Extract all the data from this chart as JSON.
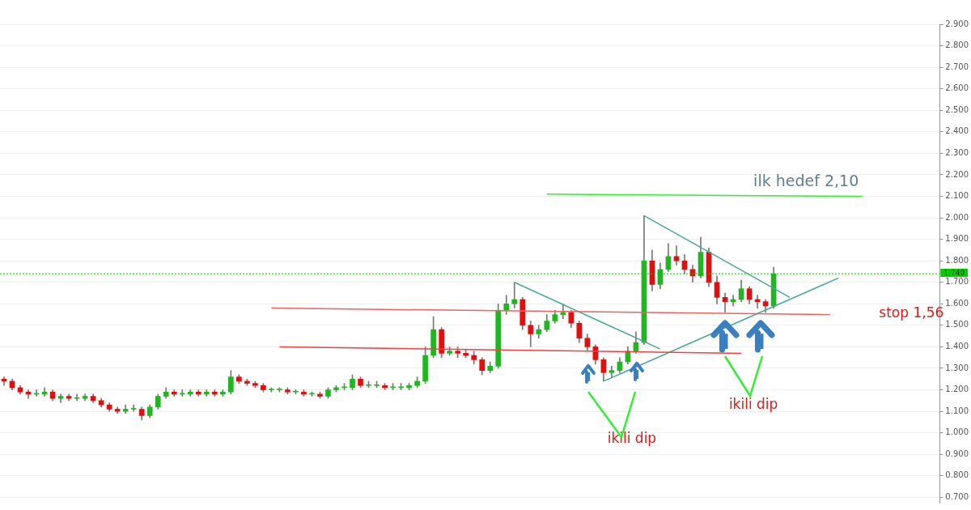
{
  "chart_data": {
    "type": "candlestick",
    "categories": [
      null,
      null,
      null,
      null,
      null,
      null,
      null,
      null,
      null,
      null,
      null,
      null,
      null,
      null,
      null,
      null,
      null,
      null,
      null,
      null,
      null,
      null,
      null,
      null,
      null,
      null,
      null,
      null,
      null,
      null,
      null,
      null,
      null,
      null,
      null,
      null,
      null,
      null,
      null,
      null,
      null,
      null,
      null,
      null,
      null,
      null,
      null,
      null,
      null,
      null,
      null,
      null,
      null,
      null,
      null,
      null,
      null,
      null,
      null,
      null,
      null,
      null,
      null,
      null,
      null,
      null,
      null,
      null,
      null,
      null,
      null,
      null,
      null,
      null,
      null,
      null,
      null,
      null,
      null,
      null,
      null,
      null,
      null,
      null,
      null,
      null,
      null,
      null,
      null,
      null,
      null,
      null,
      null,
      null,
      null,
      null,
      null,
      null,
      null,
      null,
      null,
      null,
      null,
      null,
      null,
      null,
      null,
      null,
      null,
      null,
      null,
      null,
      null,
      null,
      null,
      null
    ],
    "ohlc": [
      [
        1.25,
        1.26,
        1.22,
        1.24
      ],
      [
        1.24,
        1.25,
        1.2,
        1.21
      ],
      [
        1.21,
        1.22,
        1.18,
        1.19
      ],
      [
        1.19,
        1.2,
        1.16,
        1.18
      ],
      [
        1.18,
        1.2,
        1.17,
        1.18
      ],
      [
        1.18,
        1.21,
        1.17,
        1.19
      ],
      [
        1.19,
        1.2,
        1.15,
        1.16
      ],
      [
        1.16,
        1.18,
        1.14,
        1.17
      ],
      [
        1.17,
        1.18,
        1.15,
        1.16
      ],
      [
        1.16,
        1.18,
        1.15,
        1.16
      ],
      [
        1.16,
        1.18,
        1.15,
        1.17
      ],
      [
        1.17,
        1.18,
        1.14,
        1.15
      ],
      [
        1.15,
        1.16,
        1.12,
        1.13
      ],
      [
        1.13,
        1.14,
        1.1,
        1.11
      ],
      [
        1.11,
        1.12,
        1.09,
        1.1
      ],
      [
        1.1,
        1.13,
        1.09,
        1.11
      ],
      [
        1.11,
        1.13,
        1.1,
        1.11
      ],
      [
        1.11,
        1.12,
        1.06,
        1.08
      ],
      [
        1.08,
        1.13,
        1.07,
        1.12
      ],
      [
        1.12,
        1.18,
        1.11,
        1.17
      ],
      [
        1.17,
        1.21,
        1.16,
        1.19
      ],
      [
        1.19,
        1.2,
        1.17,
        1.18
      ],
      [
        1.18,
        1.2,
        1.17,
        1.18
      ],
      [
        1.18,
        1.2,
        1.17,
        1.19
      ],
      [
        1.19,
        1.2,
        1.17,
        1.18
      ],
      [
        1.18,
        1.2,
        1.17,
        1.19
      ],
      [
        1.19,
        1.2,
        1.17,
        1.18
      ],
      [
        1.18,
        1.2,
        1.17,
        1.19
      ],
      [
        1.19,
        1.29,
        1.18,
        1.26
      ],
      [
        1.26,
        1.27,
        1.23,
        1.24
      ],
      [
        1.24,
        1.25,
        1.22,
        1.23
      ],
      [
        1.23,
        1.24,
        1.21,
        1.22
      ],
      [
        1.22,
        1.23,
        1.19,
        1.2
      ],
      [
        1.2,
        1.21,
        1.19,
        1.2
      ],
      [
        1.2,
        1.21,
        1.19,
        1.2
      ],
      [
        1.2,
        1.21,
        1.18,
        1.19
      ],
      [
        1.19,
        1.2,
        1.18,
        1.19
      ],
      [
        1.19,
        1.2,
        1.17,
        1.18
      ],
      [
        1.18,
        1.19,
        1.17,
        1.18
      ],
      [
        1.18,
        1.19,
        1.16,
        1.17
      ],
      [
        1.17,
        1.21,
        1.16,
        1.2
      ],
      [
        1.2,
        1.22,
        1.19,
        1.21
      ],
      [
        1.21,
        1.23,
        1.2,
        1.21
      ],
      [
        1.21,
        1.27,
        1.2,
        1.25
      ],
      [
        1.25,
        1.26,
        1.21,
        1.22
      ],
      [
        1.22,
        1.24,
        1.21,
        1.22
      ],
      [
        1.22,
        1.24,
        1.21,
        1.22
      ],
      [
        1.22,
        1.23,
        1.2,
        1.21
      ],
      [
        1.21,
        1.23,
        1.2,
        1.21
      ],
      [
        1.21,
        1.23,
        1.2,
        1.21
      ],
      [
        1.21,
        1.23,
        1.2,
        1.22
      ],
      [
        1.22,
        1.26,
        1.21,
        1.24
      ],
      [
        1.24,
        1.4,
        1.23,
        1.36
      ],
      [
        1.36,
        1.54,
        1.35,
        1.48
      ],
      [
        1.48,
        1.49,
        1.35,
        1.37
      ],
      [
        1.37,
        1.4,
        1.36,
        1.38
      ],
      [
        1.38,
        1.4,
        1.35,
        1.37
      ],
      [
        1.37,
        1.39,
        1.35,
        1.36
      ],
      [
        1.36,
        1.38,
        1.32,
        1.34
      ],
      [
        1.34,
        1.35,
        1.27,
        1.29
      ],
      [
        1.29,
        1.33,
        1.28,
        1.31
      ],
      [
        1.31,
        1.6,
        1.3,
        1.57
      ],
      [
        1.57,
        1.64,
        1.55,
        1.6
      ],
      [
        1.6,
        1.7,
        1.58,
        1.62
      ],
      [
        1.62,
        1.63,
        1.48,
        1.5
      ],
      [
        1.5,
        1.52,
        1.4,
        1.46
      ],
      [
        1.46,
        1.5,
        1.44,
        1.48
      ],
      [
        1.48,
        1.55,
        1.47,
        1.52
      ],
      [
        1.52,
        1.57,
        1.51,
        1.55
      ],
      [
        1.55,
        1.6,
        1.53,
        1.56
      ],
      [
        1.56,
        1.57,
        1.49,
        1.51
      ],
      [
        1.51,
        1.52,
        1.42,
        1.44
      ],
      [
        1.44,
        1.46,
        1.38,
        1.4
      ],
      [
        1.4,
        1.41,
        1.32,
        1.34
      ],
      [
        1.34,
        1.35,
        1.24,
        1.28
      ],
      [
        1.28,
        1.31,
        1.26,
        1.29
      ],
      [
        1.29,
        1.35,
        1.28,
        1.33
      ],
      [
        1.33,
        1.4,
        1.32,
        1.38
      ],
      [
        1.38,
        1.47,
        1.37,
        1.42
      ],
      [
        1.42,
        2.01,
        1.41,
        1.8
      ],
      [
        1.8,
        1.85,
        1.66,
        1.69
      ],
      [
        1.69,
        1.79,
        1.67,
        1.76
      ],
      [
        1.76,
        1.88,
        1.75,
        1.82
      ],
      [
        1.82,
        1.87,
        1.78,
        1.8
      ],
      [
        1.8,
        1.83,
        1.74,
        1.76
      ],
      [
        1.76,
        1.78,
        1.7,
        1.73
      ],
      [
        1.73,
        1.91,
        1.72,
        1.84
      ],
      [
        1.84,
        1.86,
        1.68,
        1.7
      ],
      [
        1.7,
        1.73,
        1.6,
        1.63
      ],
      [
        1.63,
        1.65,
        1.56,
        1.61
      ],
      [
        1.61,
        1.64,
        1.59,
        1.62
      ],
      [
        1.62,
        1.71,
        1.61,
        1.67
      ],
      [
        1.67,
        1.68,
        1.6,
        1.62
      ],
      [
        1.62,
        1.64,
        1.58,
        1.61
      ],
      [
        1.61,
        1.62,
        1.56,
        1.59
      ],
      [
        1.59,
        1.77,
        1.58,
        1.74
      ],
      null,
      null,
      null,
      null,
      null,
      null,
      null,
      null,
      null,
      null,
      null,
      null,
      null,
      null,
      null,
      null,
      null,
      null,
      null,
      null
    ],
    "series": [
      {
        "type": "line",
        "color": "#33ee33",
        "values": [
          null,
          null,
          null,
          null,
          null,
          null,
          null,
          null,
          null,
          null,
          null,
          null,
          null,
          null,
          null,
          null,
          null,
          null,
          null,
          null,
          null,
          null,
          null,
          null,
          null,
          null,
          null,
          null,
          null,
          null,
          null,
          null,
          null,
          null,
          null,
          null,
          null,
          null,
          null,
          null,
          null,
          null,
          null,
          null,
          null,
          null,
          null,
          null,
          null,
          null,
          null,
          null,
          null,
          null,
          null,
          null,
          null,
          null,
          null,
          null,
          null,
          null,
          null,
          null,
          null,
          null,
          null,
          2.11,
          null,
          null,
          null,
          null,
          null,
          null,
          null,
          null,
          null,
          null,
          null,
          null,
          null,
          null,
          null,
          null,
          null,
          null,
          null,
          null,
          null,
          null,
          null,
          null,
          null,
          null,
          null,
          null,
          null,
          null,
          null,
          null,
          null,
          null,
          null,
          null,
          null,
          null,
          2.1,
          null,
          null,
          null,
          null,
          null,
          null,
          null,
          null,
          null
        ]
      },
      {
        "type": "line",
        "color": "#f06060",
        "values": [
          null,
          null,
          null,
          null,
          null,
          null,
          null,
          null,
          null,
          null,
          null,
          null,
          null,
          null,
          null,
          null,
          null,
          null,
          null,
          null,
          null,
          null,
          null,
          null,
          null,
          null,
          null,
          null,
          null,
          null,
          null,
          null,
          null,
          1.58,
          null,
          null,
          null,
          null,
          null,
          null,
          null,
          null,
          null,
          null,
          null,
          null,
          null,
          null,
          null,
          null,
          null,
          null,
          null,
          null,
          null,
          null,
          null,
          null,
          null,
          null,
          null,
          null,
          null,
          null,
          null,
          null,
          null,
          null,
          null,
          null,
          null,
          null,
          null,
          null,
          null,
          null,
          null,
          null,
          null,
          null,
          null,
          null,
          null,
          null,
          null,
          null,
          null,
          null,
          null,
          null,
          null,
          null,
          null,
          null,
          null,
          null,
          null,
          null,
          null,
          null,
          null,
          null,
          1.55,
          null,
          null,
          null,
          null,
          null,
          null,
          null,
          null,
          null,
          null,
          null,
          null,
          null
        ]
      },
      {
        "type": "line",
        "color": "#f04040",
        "values": [
          null,
          null,
          null,
          null,
          null,
          null,
          null,
          null,
          null,
          null,
          null,
          null,
          null,
          null,
          null,
          null,
          null,
          null,
          null,
          null,
          null,
          null,
          null,
          null,
          null,
          null,
          null,
          null,
          null,
          null,
          null,
          null,
          null,
          null,
          1.4,
          null,
          null,
          null,
          null,
          null,
          null,
          null,
          null,
          null,
          null,
          null,
          null,
          null,
          null,
          null,
          null,
          null,
          null,
          null,
          null,
          null,
          null,
          null,
          null,
          null,
          null,
          null,
          null,
          null,
          null,
          null,
          null,
          null,
          null,
          null,
          null,
          null,
          null,
          null,
          null,
          null,
          null,
          null,
          null,
          null,
          null,
          null,
          null,
          null,
          null,
          null,
          null,
          null,
          null,
          null,
          null,
          1.37,
          null,
          null,
          null,
          null,
          null,
          null,
          null,
          null,
          null,
          null,
          null,
          null,
          null,
          null,
          null,
          null,
          null,
          null,
          null,
          null,
          null,
          null,
          null,
          null
        ]
      },
      {
        "type": "line",
        "color": "#48a898",
        "values": [
          null,
          null,
          null,
          null,
          null,
          null,
          null,
          null,
          null,
          null,
          null,
          null,
          null,
          null,
          null,
          null,
          null,
          null,
          null,
          null,
          null,
          null,
          null,
          null,
          null,
          null,
          null,
          null,
          null,
          null,
          null,
          null,
          null,
          null,
          null,
          null,
          null,
          null,
          null,
          null,
          null,
          null,
          null,
          null,
          null,
          null,
          null,
          null,
          null,
          null,
          null,
          null,
          null,
          null,
          null,
          null,
          null,
          null,
          null,
          null,
          null,
          null,
          null,
          1.7,
          null,
          null,
          null,
          null,
          null,
          null,
          null,
          null,
          null,
          null,
          null,
          null,
          null,
          null,
          null,
          null,
          null,
          1.39,
          null,
          null,
          null,
          null,
          null,
          null,
          null,
          null,
          null,
          null,
          null,
          null,
          null,
          null,
          null,
          null,
          null,
          null,
          null,
          null,
          null,
          null,
          null,
          null,
          null,
          null,
          null,
          null,
          null,
          null,
          null,
          null,
          null,
          null
        ]
      },
      {
        "type": "line",
        "color": "#48a898",
        "values": [
          null,
          null,
          null,
          null,
          null,
          null,
          null,
          null,
          null,
          null,
          null,
          null,
          null,
          null,
          null,
          null,
          null,
          null,
          null,
          null,
          null,
          null,
          null,
          null,
          null,
          null,
          null,
          null,
          null,
          null,
          null,
          null,
          null,
          null,
          null,
          null,
          null,
          null,
          null,
          null,
          null,
          null,
          null,
          null,
          null,
          null,
          null,
          null,
          null,
          null,
          null,
          null,
          null,
          null,
          null,
          null,
          null,
          null,
          null,
          null,
          null,
          null,
          null,
          null,
          null,
          null,
          null,
          null,
          null,
          null,
          null,
          null,
          null,
          null,
          1.24,
          null,
          null,
          null,
          null,
          null,
          null,
          null,
          null,
          null,
          null,
          null,
          null,
          null,
          null,
          null,
          null,
          null,
          null,
          null,
          null,
          null,
          null,
          null,
          null,
          null,
          null,
          null,
          null,
          1.72,
          null,
          null,
          null,
          null,
          null,
          null,
          null,
          null,
          null,
          null,
          null,
          null
        ]
      },
      {
        "type": "line",
        "color": "#48a898",
        "values": [
          null,
          null,
          null,
          null,
          null,
          null,
          null,
          null,
          null,
          null,
          null,
          null,
          null,
          null,
          null,
          null,
          null,
          null,
          null,
          null,
          null,
          null,
          null,
          null,
          null,
          null,
          null,
          null,
          null,
          null,
          null,
          null,
          null,
          null,
          null,
          null,
          null,
          null,
          null,
          null,
          null,
          null,
          null,
          null,
          null,
          null,
          null,
          null,
          null,
          null,
          null,
          null,
          null,
          null,
          null,
          null,
          null,
          null,
          null,
          null,
          null,
          null,
          null,
          null,
          null,
          null,
          null,
          null,
          null,
          null,
          null,
          null,
          null,
          null,
          null,
          null,
          null,
          null,
          null,
          2.01,
          null,
          null,
          null,
          null,
          null,
          null,
          null,
          null,
          null,
          null,
          null,
          null,
          null,
          null,
          null,
          null,
          null,
          1.63,
          null,
          null,
          null,
          null,
          null,
          null,
          null,
          null,
          null,
          null,
          null,
          null,
          null,
          null,
          null,
          null,
          null,
          null
        ]
      }
    ],
    "ylim": [
      0.675,
      2.9
    ],
    "yticks": [
      {
        "value": 0.7,
        "label": "0.700"
      },
      {
        "value": 0.8,
        "label": "0.800"
      },
      {
        "value": 0.9,
        "label": "0.900"
      },
      {
        "value": 1.0,
        "label": "1.000"
      },
      {
        "value": 1.1,
        "label": "1.100"
      },
      {
        "value": 1.2,
        "label": "1.200"
      },
      {
        "value": 1.3,
        "label": "1.300"
      },
      {
        "value": 1.4,
        "label": "1.400"
      },
      {
        "value": 1.5,
        "label": "1.500"
      },
      {
        "value": 1.6,
        "label": "1.600"
      },
      {
        "value": 1.7,
        "label": "1.700"
      },
      {
        "value": 1.8,
        "label": "1.800"
      },
      {
        "value": 1.9,
        "label": "1.900"
      },
      {
        "value": 2.0,
        "label": "2.000"
      },
      {
        "value": 2.1,
        "label": "2.100"
      },
      {
        "value": 2.2,
        "label": "2.200"
      },
      {
        "value": 2.3,
        "label": "2.300"
      },
      {
        "value": 2.4,
        "label": "2.400"
      },
      {
        "value": 2.5,
        "label": "2.500"
      },
      {
        "value": 2.6,
        "label": "2.600"
      },
      {
        "value": 2.7,
        "label": "2.700"
      },
      {
        "value": 2.8,
        "label": "2.800"
      },
      {
        "value": 2.9,
        "label": "2.900"
      }
    ],
    "ref_lines": [
      {
        "axis": "y",
        "value": 1.74,
        "label": "1.740",
        "color": "#00cc00",
        "line_style": "dotted"
      }
    ],
    "annotations": [
      "ilk hedef 2,10",
      "stop 1,56",
      "ikili dip",
      "ikili dip"
    ],
    "grid": "y",
    "legend": false,
    "tick_labels": "y"
  }
}
